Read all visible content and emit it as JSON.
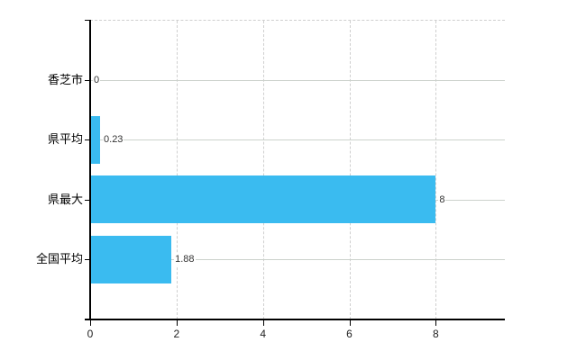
{
  "chart_data": {
    "type": "bar",
    "orientation": "horizontal",
    "title": "",
    "categories": [
      "香芝市",
      "県平均",
      "県最大",
      "全国平均"
    ],
    "values": [
      0,
      0.23,
      8,
      1.88
    ],
    "value_labels": [
      "0",
      "0.23",
      "8",
      "1.88"
    ],
    "xticks": [
      0,
      2,
      4,
      6,
      8
    ],
    "xtick_labels": [
      "0",
      "2",
      "4",
      "6",
      "8"
    ],
    "xlim": [
      0,
      9.6
    ],
    "grid": true,
    "legend": false,
    "bar_color": "#3abbf0",
    "hgrid_color": "#ccd2cc",
    "vgrid_color": "#cfcfcf",
    "axis_color": "#000000",
    "category_label_color": "#000000",
    "value_label_color": "#333333",
    "background_color": "#ffffff"
  }
}
